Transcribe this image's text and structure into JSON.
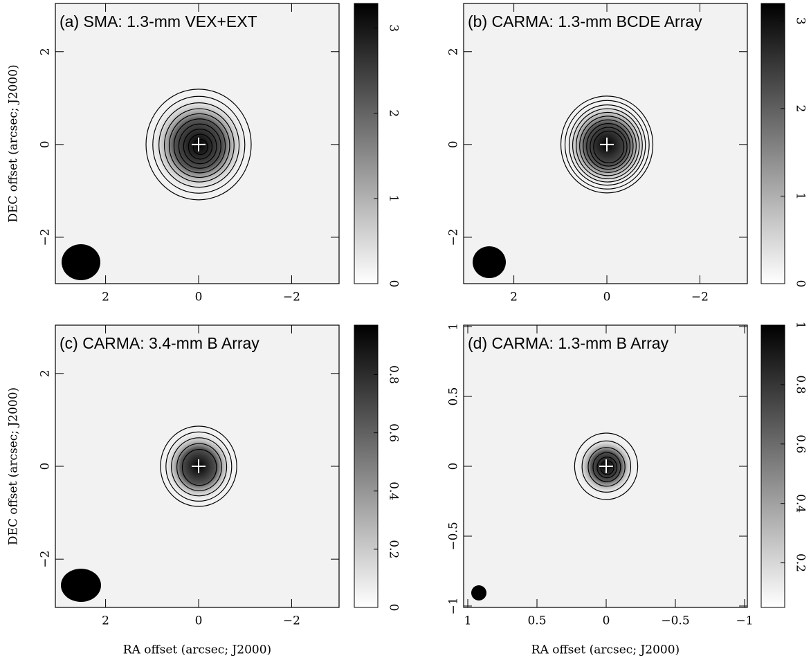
{
  "chart_data": [
    {
      "type": "image",
      "title": "(a) SMA: 1.3-mm VEX+EXT",
      "ylabel": "DEC offset (arcsec; J2000)",
      "xlim": [
        3.08,
        -3.02
      ],
      "ylim": [
        -3.0,
        3.04
      ],
      "xticks": [
        2,
        0,
        {
          "value": -2,
          "label": "−2"
        }
      ],
      "yticks": [
        {
          "value": -2,
          "label": "−2"
        },
        0,
        2
      ],
      "clim": [
        0,
        3.29
      ],
      "cticks": [
        0,
        1,
        2,
        3
      ]
    },
    {
      "type": "image",
      "title": "(b) CARMA: 1.3-mm BCDE Array",
      "xlim": [
        3.08,
        -3.02
      ],
      "ylim": [
        -3.0,
        3.04
      ],
      "xticks": [
        2,
        0,
        {
          "value": -2,
          "label": "−2"
        }
      ],
      "yticks": [
        {
          "value": -2,
          "label": "−2"
        },
        0,
        2
      ],
      "clim": [
        0,
        3.2
      ],
      "cticks": [
        0,
        1,
        2,
        3
      ]
    },
    {
      "type": "image",
      "title": "(c) CARMA: 3.4-mm B Array",
      "xlabel": "RA offset (arcsec; J2000)",
      "ylabel": "DEC offset (arcsec; J2000)",
      "xlim": [
        3.08,
        -3.02
      ],
      "ylim": [
        -3.04,
        3.04
      ],
      "xticks": [
        2,
        0,
        {
          "value": -2,
          "label": "−2"
        }
      ],
      "yticks": [
        {
          "value": -2,
          "label": "−2"
        },
        0,
        2
      ],
      "clim": [
        0,
        0.97
      ],
      "cticks": [
        0,
        0.2,
        0.4,
        0.6,
        0.8
      ]
    },
    {
      "type": "image",
      "title": "(d) CARMA: 1.3-mm B Array",
      "xlabel": "RA offset (arcsec; J2000)",
      "xlim": [
        1.03,
        -1.02
      ],
      "ylim": [
        -1.01,
        1.01
      ],
      "xticks": [
        1,
        0.5,
        0,
        {
          "value": -0.5,
          "label": "−0.5"
        },
        {
          "value": -1,
          "label": "−1"
        }
      ],
      "yticks": [
        {
          "value": -1,
          "label": "−1"
        },
        {
          "value": -0.5,
          "label": "−0.5"
        },
        0,
        0.5,
        1
      ],
      "clim": [
        0.05,
        1
      ],
      "cticks": [
        0.2,
        0.4,
        0.6,
        0.8,
        1
      ]
    }
  ]
}
